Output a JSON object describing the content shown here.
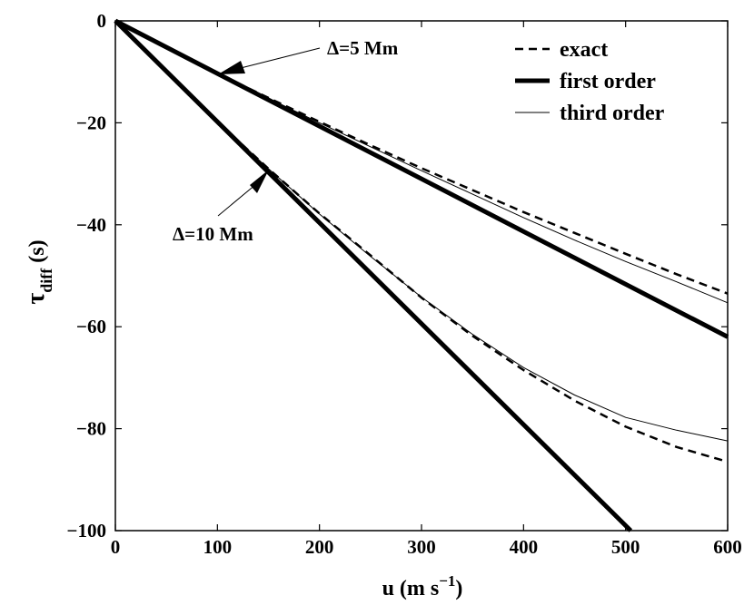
{
  "chart_data": {
    "type": "line",
    "title": "",
    "xlabel": {
      "main": "u  (m s",
      "sup": "−1",
      "close": ")"
    },
    "ylabel": {
      "main": "τ",
      "sub": "diff",
      "unit": "  (s)"
    },
    "xlim": [
      0,
      600
    ],
    "ylim": [
      -100,
      0
    ],
    "xticks": [
      0,
      100,
      200,
      300,
      400,
      500,
      600
    ],
    "yticks": [
      0,
      -20,
      -40,
      -60,
      -80,
      -100
    ],
    "xtick_labels": [
      "0",
      "100",
      "200",
      "300",
      "400",
      "500",
      "600"
    ],
    "ytick_labels": [
      "0",
      "−20",
      "−40",
      "−60",
      "−80",
      "−100"
    ],
    "grid": false,
    "legend_position": "top-right",
    "legend": [
      {
        "key": "exact",
        "label": "exact",
        "style": "dashed"
      },
      {
        "key": "first",
        "label": "first order",
        "style": "thick"
      },
      {
        "key": "third",
        "label": "third order",
        "style": "thin"
      }
    ],
    "series": [
      {
        "name": "exact",
        "group": "Δ=5 Mm",
        "style": "dashed",
        "x": [
          0,
          100,
          150,
          200,
          250,
          300,
          350,
          400,
          450,
          500,
          550,
          600
        ],
        "y": [
          0,
          -10.3,
          -15.1,
          -19.8,
          -24.4,
          -28.9,
          -33.2,
          -37.5,
          -41.6,
          -45.7,
          -49.7,
          -53.5
        ]
      },
      {
        "name": "first order",
        "group": "Δ=5 Mm",
        "style": "thick",
        "x": [
          0,
          600
        ],
        "y": [
          0,
          -62
        ]
      },
      {
        "name": "third order",
        "group": "Δ=5 Mm",
        "style": "thin",
        "x": [
          0,
          100,
          150,
          200,
          250,
          300,
          350,
          400,
          450,
          500,
          550,
          600
        ],
        "y": [
          0,
          -10.2,
          -15.2,
          -20.0,
          -24.7,
          -29.4,
          -34.0,
          -38.6,
          -43.0,
          -47.2,
          -51.2,
          -55.3
        ]
      },
      {
        "name": "exact",
        "group": "Δ=10 Mm",
        "style": "dashed",
        "x": [
          0,
          100,
          150,
          200,
          250,
          300,
          350,
          400,
          450,
          500,
          550,
          600
        ],
        "y": [
          0,
          -19.8,
          -29.0,
          -37.8,
          -46.0,
          -54.3,
          -61.8,
          -68.5,
          -74.5,
          -79.6,
          -83.6,
          -86.5
        ]
      },
      {
        "name": "first order",
        "group": "Δ=10 Mm",
        "style": "thick",
        "x": [
          0,
          505
        ],
        "y": [
          0,
          -100
        ]
      },
      {
        "name": "third order",
        "group": "Δ=10 Mm",
        "style": "thin",
        "x": [
          0,
          100,
          150,
          200,
          250,
          300,
          350,
          400,
          450,
          500,
          550,
          600
        ],
        "y": [
          0,
          -19.8,
          -29.0,
          -37.9,
          -46.2,
          -54.2,
          -61.5,
          -68.0,
          -73.4,
          -77.8,
          -80.3,
          -82.4
        ]
      }
    ],
    "annotations": [
      {
        "text": "Δ=5 Mm",
        "point": [
          100,
          -10.3
        ]
      },
      {
        "text": "Δ=10 Mm",
        "point": [
          150,
          -29.0
        ]
      }
    ]
  }
}
